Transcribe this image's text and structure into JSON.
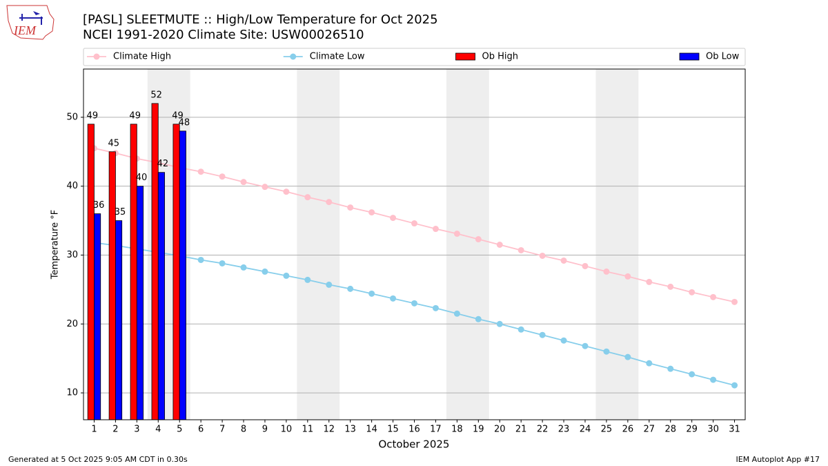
{
  "chart_data": {
    "type": "combo",
    "title": "[PASL] SLEETMUTE :: High/Low Temperature for Oct 2025",
    "subtitle": "NCEI 1991-2020 Climate Site: USW00026510",
    "x_label": "October 2025",
    "y_label": "Temperature °F",
    "footer_left": "Generated at 5 Oct 2025 9:05 AM CDT in 0.30s",
    "footer_right": "IEM Autoplot App #17",
    "logo_text": "IEM",
    "x": [
      1,
      2,
      3,
      4,
      5,
      6,
      7,
      8,
      9,
      10,
      11,
      12,
      13,
      14,
      15,
      16,
      17,
      18,
      19,
      20,
      21,
      22,
      23,
      24,
      25,
      26,
      27,
      28,
      29,
      30,
      31
    ],
    "xlim": [
      0.5,
      31.5
    ],
    "xticks": [
      1,
      2,
      3,
      4,
      5,
      6,
      7,
      8,
      9,
      10,
      11,
      12,
      13,
      14,
      15,
      16,
      17,
      18,
      19,
      20,
      21,
      22,
      23,
      24,
      25,
      26,
      27,
      28,
      29,
      30,
      31
    ],
    "ylim": [
      6.1,
      57
    ],
    "yticks": [
      10,
      20,
      30,
      40,
      50
    ],
    "grid": true,
    "shaded_spans": [
      [
        3.5,
        5.5
      ],
      [
        10.5,
        12.5
      ],
      [
        17.5,
        19.5
      ],
      [
        24.5,
        26.5
      ]
    ],
    "shade_color": "#eeeeee",
    "series": [
      {
        "name": "Climate High",
        "type": "line",
        "color": "#ffc0cb",
        "values": [
          45.5,
          44.8,
          44.0,
          43.4,
          42.7,
          42.1,
          41.4,
          40.6,
          39.9,
          39.2,
          38.4,
          37.7,
          36.9,
          36.2,
          35.4,
          34.6,
          33.8,
          33.1,
          32.3,
          31.5,
          30.7,
          29.9,
          29.2,
          28.4,
          27.6,
          26.9,
          26.1,
          25.4,
          24.6,
          23.9,
          23.2
        ]
      },
      {
        "name": "Climate Low",
        "type": "line",
        "color": "#87ceeb",
        "values": [
          31.8,
          31.4,
          30.9,
          30.4,
          29.9,
          29.3,
          28.8,
          28.2,
          27.6,
          27.0,
          26.4,
          25.7,
          25.1,
          24.4,
          23.7,
          23.0,
          22.3,
          21.5,
          20.7,
          20.0,
          19.2,
          18.4,
          17.6,
          16.8,
          16.0,
          15.2,
          14.3,
          13.5,
          12.7,
          11.9,
          11.1
        ]
      },
      {
        "name": "Ob High",
        "type": "bar",
        "color": "#ff0000",
        "values": [
          49,
          45,
          49,
          52,
          49,
          null,
          null,
          null,
          null,
          null,
          null,
          null,
          null,
          null,
          null,
          null,
          null,
          null,
          null,
          null,
          null,
          null,
          null,
          null,
          null,
          null,
          null,
          null,
          null,
          null,
          null
        ]
      },
      {
        "name": "Ob Low",
        "type": "bar",
        "color": "#0000ff",
        "values": [
          36,
          35,
          40,
          42,
          48,
          null,
          null,
          null,
          null,
          null,
          null,
          null,
          null,
          null,
          null,
          null,
          null,
          null,
          null,
          null,
          null,
          null,
          null,
          null,
          null,
          null,
          null,
          null,
          null,
          null,
          null
        ]
      }
    ]
  }
}
